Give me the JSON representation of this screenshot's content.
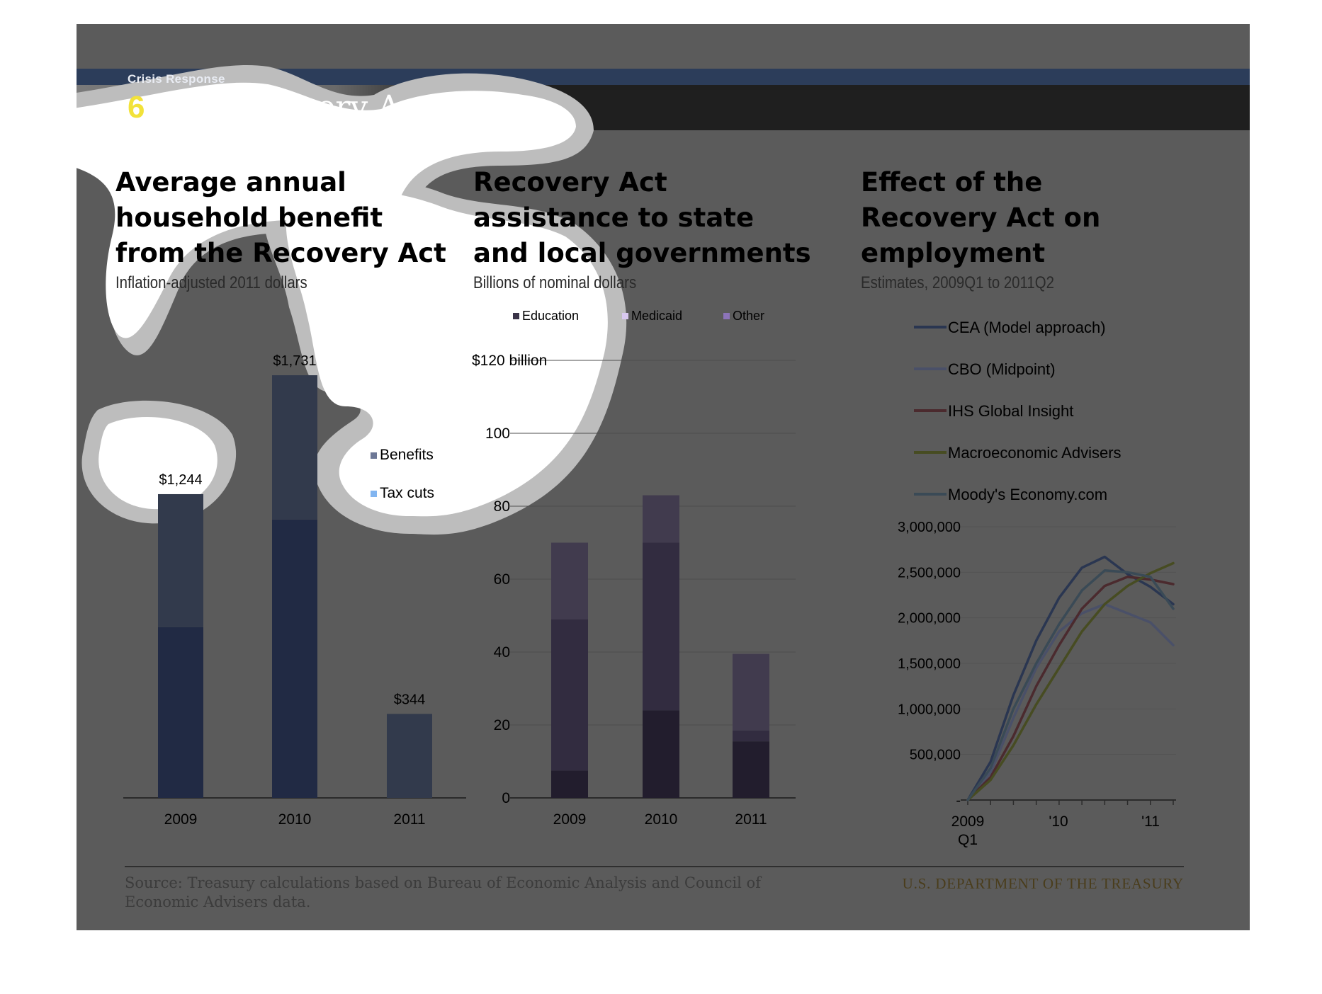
{
  "header": {
    "section": "Crisis Response",
    "number": "6",
    "title": "The Recovery Act"
  },
  "chart_data": [
    {
      "type": "bar",
      "stacked": true,
      "title": "Average annual household benefit from the Recovery Act",
      "subtitle": "Inflation-adjusted 2011 dollars",
      "categories": [
        "2009",
        "2010",
        "2011"
      ],
      "series": [
        {
          "name": "Benefits",
          "values": [
            545,
            591,
            344
          ],
          "color": "#323a4c"
        },
        {
          "name": "Tax cuts",
          "values": [
            699,
            1140,
            0
          ],
          "color": "#212a44"
        }
      ],
      "totals_labels": [
        "$1,244",
        "$1,731",
        "$344"
      ],
      "legend": "right",
      "ylim": [
        0,
        1731
      ]
    },
    {
      "type": "bar",
      "stacked": true,
      "title": "Recovery Act assistance to state and local governments",
      "subtitle": "Billions of nominal dollars",
      "categories": [
        "2009",
        "2010",
        "2011"
      ],
      "series": [
        {
          "name": "Education",
          "values": [
            7.5,
            24,
            15.5
          ],
          "color": "#221d2d"
        },
        {
          "name": "Medicaid",
          "values": [
            41.5,
            46,
            3
          ],
          "color": "#322c40"
        },
        {
          "name": "Other",
          "values": [
            21,
            13,
            21
          ],
          "color": "#413b4e"
        }
      ],
      "ylim": [
        0,
        120
      ],
      "yticks": [
        "0",
        "20",
        "40",
        "60",
        "80",
        "100",
        "$120 billion"
      ],
      "legend": "top",
      "grid": true
    },
    {
      "type": "line",
      "title": "Effect of the Recovery Act on employment",
      "subtitle": "Estimates, 2009Q1 to 2011Q2",
      "x": [
        "2009Q1",
        "2009Q2",
        "2009Q3",
        "2009Q4",
        "2010Q1",
        "2010Q2",
        "2010Q3",
        "2010Q4",
        "2011Q1",
        "2011Q2"
      ],
      "xticklabels": [
        "2009\nQ1",
        "'10",
        "'11"
      ],
      "yticks": [
        "-",
        "500,000",
        "1,000,000",
        "1,500,000",
        "2,000,000",
        "2,500,000",
        "3,000,000"
      ],
      "ylim": [
        0,
        3000000
      ],
      "legend": "top",
      "series": [
        {
          "name": "CEA (Model approach)",
          "color": "#2a3651",
          "values": [
            0,
            420000,
            1150000,
            1750000,
            2220000,
            2550000,
            2670000,
            2480000,
            2340000,
            2150000
          ]
        },
        {
          "name": "CBO (Midpoint)",
          "color": "#4a5068",
          "values": [
            0,
            300000,
            900000,
            1450000,
            1850000,
            2050000,
            2150000,
            2050000,
            1950000,
            1700000
          ]
        },
        {
          "name": "IHS Global Insight",
          "color": "#4b2a2e",
          "values": [
            0,
            250000,
            700000,
            1250000,
            1700000,
            2100000,
            2350000,
            2450000,
            2420000,
            2370000
          ]
        },
        {
          "name": "Macroeconomic Advisers",
          "color": "#474c22",
          "values": [
            0,
            220000,
            600000,
            1050000,
            1450000,
            1850000,
            2150000,
            2350000,
            2490000,
            2600000
          ]
        },
        {
          "name": "Moody's Economy.com",
          "color": "#3a4a56",
          "values": [
            0,
            350000,
            1000000,
            1500000,
            1930000,
            2300000,
            2520000,
            2500000,
            2450000,
            2100000
          ]
        }
      ]
    }
  ],
  "footer": {
    "source": "Source: Treasury calculations based on Bureau of Economic Analysis and Council of Economic Advisers data.",
    "department": "U.S. DEPARTMENT OF THE TREASURY"
  }
}
